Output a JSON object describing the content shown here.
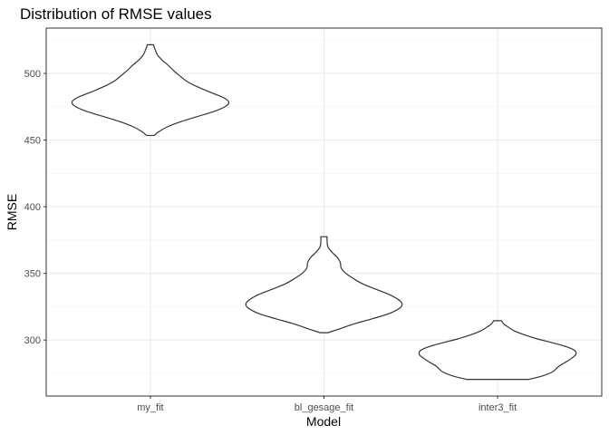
{
  "chart_data": {
    "type": "violin",
    "title": "Distribution of RMSE values",
    "xlabel": "Model",
    "ylabel": "RMSE",
    "ylim": [
      258,
      534
    ],
    "y_ticks": [
      300,
      350,
      400,
      450,
      500
    ],
    "categories": [
      "my_fit",
      "bl_gesage_fit",
      "inter3_fit"
    ],
    "grid": true,
    "theme": "black-and-white",
    "series": [
      {
        "category": "my_fit",
        "min": 453.5,
        "max": 521.5,
        "profile": [
          [
            453.5,
            0.05
          ],
          [
            456,
            0.1
          ],
          [
            460,
            0.22
          ],
          [
            464,
            0.4
          ],
          [
            468,
            0.62
          ],
          [
            472,
            0.84
          ],
          [
            476,
            0.98
          ],
          [
            479,
            1.0
          ],
          [
            482,
            0.93
          ],
          [
            486,
            0.76
          ],
          [
            490,
            0.6
          ],
          [
            494,
            0.47
          ],
          [
            498,
            0.38
          ],
          [
            502,
            0.3
          ],
          [
            506,
            0.23
          ],
          [
            510,
            0.15
          ],
          [
            514,
            0.09
          ],
          [
            518,
            0.06
          ],
          [
            521.5,
            0.04
          ]
        ]
      },
      {
        "category": "bl_gesage_fit",
        "min": 305.5,
        "max": 377.5,
        "profile": [
          [
            305.5,
            0.05
          ],
          [
            308,
            0.18
          ],
          [
            312,
            0.38
          ],
          [
            316,
            0.62
          ],
          [
            320,
            0.84
          ],
          [
            324,
            0.97
          ],
          [
            327,
            1.0
          ],
          [
            330,
            0.96
          ],
          [
            334,
            0.84
          ],
          [
            338,
            0.67
          ],
          [
            342,
            0.5
          ],
          [
            346,
            0.38
          ],
          [
            350,
            0.28
          ],
          [
            354,
            0.22
          ],
          [
            358,
            0.21
          ],
          [
            362,
            0.17
          ],
          [
            366,
            0.1
          ],
          [
            370,
            0.05
          ],
          [
            374,
            0.04
          ],
          [
            377.5,
            0.04
          ]
        ]
      },
      {
        "category": "inter3_fit",
        "min": 270.5,
        "max": 314.5,
        "profile": [
          [
            270.5,
            0.4
          ],
          [
            273,
            0.57
          ],
          [
            276,
            0.7
          ],
          [
            279,
            0.76
          ],
          [
            281,
            0.8
          ],
          [
            283,
            0.86
          ],
          [
            286,
            0.94
          ],
          [
            289,
            1.0
          ],
          [
            292,
            0.99
          ],
          [
            295,
            0.88
          ],
          [
            298,
            0.7
          ],
          [
            301,
            0.5
          ],
          [
            304,
            0.34
          ],
          [
            307,
            0.21
          ],
          [
            310,
            0.13
          ],
          [
            312,
            0.08
          ],
          [
            314.5,
            0.05
          ]
        ]
      }
    ]
  }
}
